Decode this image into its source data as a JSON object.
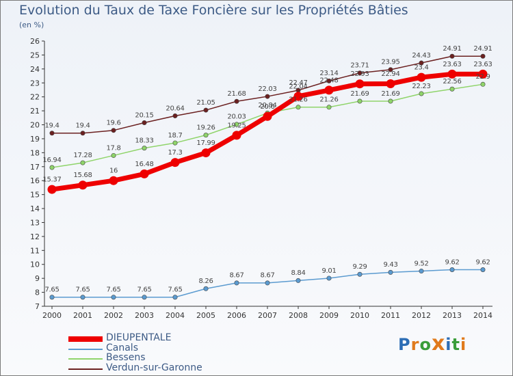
{
  "header": {
    "title": "Evolution du Taux de Taxe Foncière sur les Propriétés Bâties",
    "unit": "(en %)"
  },
  "logo": {
    "letters": [
      "P",
      "r",
      "o",
      "x",
      "i",
      "t",
      "i"
    ]
  },
  "chart_data": {
    "type": "line",
    "title": "Evolution du Taux de Taxe Foncière sur les Propriétés Bâties",
    "ylabel": "(en %)",
    "xlabel": "",
    "x": [
      "2000",
      "2001",
      "2002",
      "2003",
      "2004",
      "2005",
      "2006",
      "2007",
      "2008",
      "2009",
      "2010",
      "2011",
      "2012",
      "2013",
      "2014"
    ],
    "ylim": [
      7,
      26
    ],
    "yticks": [
      7,
      8,
      9,
      10,
      11,
      12,
      13,
      14,
      15,
      16,
      17,
      18,
      19,
      20,
      21,
      22,
      23,
      24,
      25,
      26
    ],
    "grid": false,
    "legend": "bottom-left",
    "series": [
      {
        "name": "Verdun-sur-Garonne",
        "color": "#6b2020",
        "values": [
          19.4,
          19.4,
          19.6,
          20.15,
          20.64,
          21.05,
          21.68,
          22.03,
          22.47,
          23.14,
          23.71,
          23.95,
          24.43,
          24.91,
          24.91
        ],
        "labels": [
          "19.4",
          "19.4",
          "19.6",
          "20.15",
          "20.64",
          "21.05",
          "21.68",
          "22.03",
          "22.47",
          "23.14",
          "23.71",
          "23.95",
          "24.43",
          "24.91",
          "24.91"
        ]
      },
      {
        "name": "Bessens",
        "color": "#8fd46a",
        "values": [
          16.94,
          17.28,
          17.8,
          18.33,
          18.7,
          19.26,
          20.03,
          20.84,
          21.26,
          21.26,
          21.69,
          21.69,
          22.23,
          22.56,
          22.9
        ],
        "labels": [
          "16.94",
          "17.28",
          "17.8",
          "18.33",
          "18.7",
          "19.26",
          "20.03",
          "20.84",
          "21.26",
          "21.26",
          "21.69",
          "21.69",
          "22.23",
          "22.56",
          "22.9"
        ]
      },
      {
        "name": "Canals",
        "color": "#5b9bd0",
        "values": [
          7.65,
          7.65,
          7.65,
          7.65,
          7.65,
          8.26,
          8.67,
          8.67,
          8.84,
          9.01,
          9.29,
          9.43,
          9.52,
          9.62,
          9.62
        ],
        "labels": [
          "7.65",
          "7.65",
          "7.65",
          "7.65",
          "7.65",
          "8.26",
          "8.67",
          "8.67",
          "8.84",
          "9.01",
          "9.29",
          "9.43",
          "9.52",
          "9.62",
          "9.62"
        ]
      },
      {
        "name": "DIEUPENTALE",
        "color": "#ee0000",
        "values": [
          15.37,
          15.68,
          16,
          16.48,
          17.3,
          17.99,
          19.25,
          20.6,
          22.04,
          22.48,
          22.93,
          22.94,
          23.4,
          23.63,
          23.63
        ],
        "labels": [
          "15.37",
          "15.68",
          "16",
          "16.48",
          "17.3",
          "17.99",
          "19.25",
          "20.6",
          "22.04",
          "22.48",
          "22.93",
          "22.94",
          "23.4",
          "23.63",
          "23.63"
        ]
      }
    ]
  }
}
